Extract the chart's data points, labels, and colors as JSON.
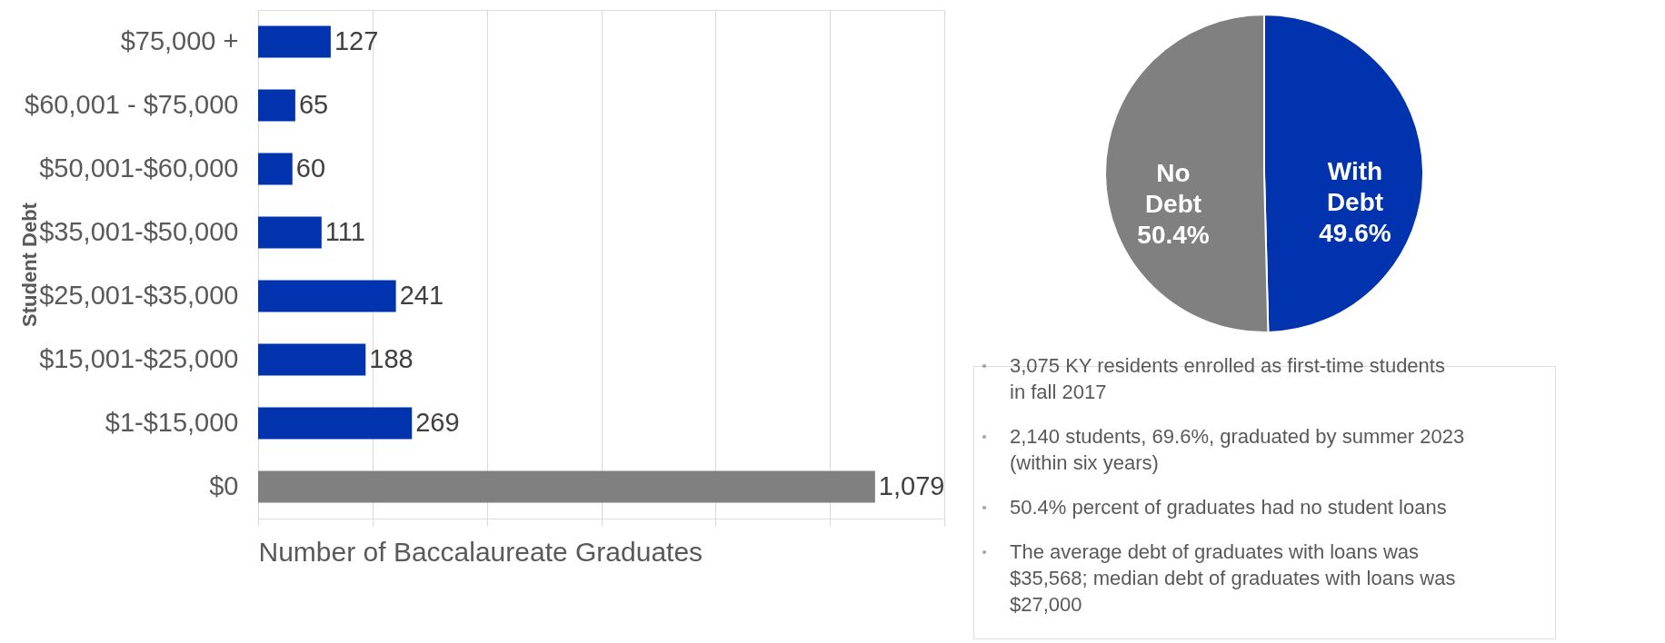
{
  "chart_data": [
    {
      "type": "bar",
      "orientation": "horizontal",
      "ylabel": "Student Debt",
      "xlabel": "Number of Baccalaureate Graduates",
      "categories": [
        "$75,000 +",
        "$60,001 - $75,000",
        "$50,001-$60,000",
        "$35,001-$50,000",
        "$25,001-$35,000",
        "$15,001-$25,000",
        "$1-$15,000",
        "$0"
      ],
      "values": [
        127,
        65,
        60,
        111,
        241,
        188,
        269,
        1079
      ],
      "colors": [
        "#0033ad",
        "#0033ad",
        "#0033ad",
        "#0033ad",
        "#0033ad",
        "#0033ad",
        "#0033ad",
        "#808080"
      ],
      "xlim": [
        0,
        1200
      ],
      "xticks": [
        {
          "value": 0,
          "label": null
        },
        {
          "value": 200,
          "label": null
        },
        {
          "value": 400,
          "label": null
        },
        {
          "value": 600,
          "label": null
        },
        {
          "value": 800,
          "label": null
        },
        {
          "value": 1000,
          "label": null
        },
        {
          "value": 1200,
          "label": null
        }
      ],
      "value_labels": [
        "127",
        "65",
        "60",
        "111",
        "241",
        "188",
        "269",
        "1,079"
      ],
      "tick_labels": "y",
      "grid": "x"
    },
    {
      "type": "pie",
      "categories": [
        "With Debt",
        "No Debt"
      ],
      "values": [
        49.6,
        50.4
      ],
      "colors": [
        "#0033ad",
        "#808080"
      ],
      "value_labels": [
        "49.6%",
        "50.4%"
      ]
    },
    {
      "type": "other",
      "annotations": [
        "3,075 KY residents enrolled as first-time students in fall 2017",
        "2,140 students, 69.6%, graduated by summer 2023 (within six years)",
        "50.4% percent of graduates had no student loans",
        "The average debt of graduates with loans was $35,568; median debt of graduates with loans was $27,000"
      ]
    }
  ]
}
